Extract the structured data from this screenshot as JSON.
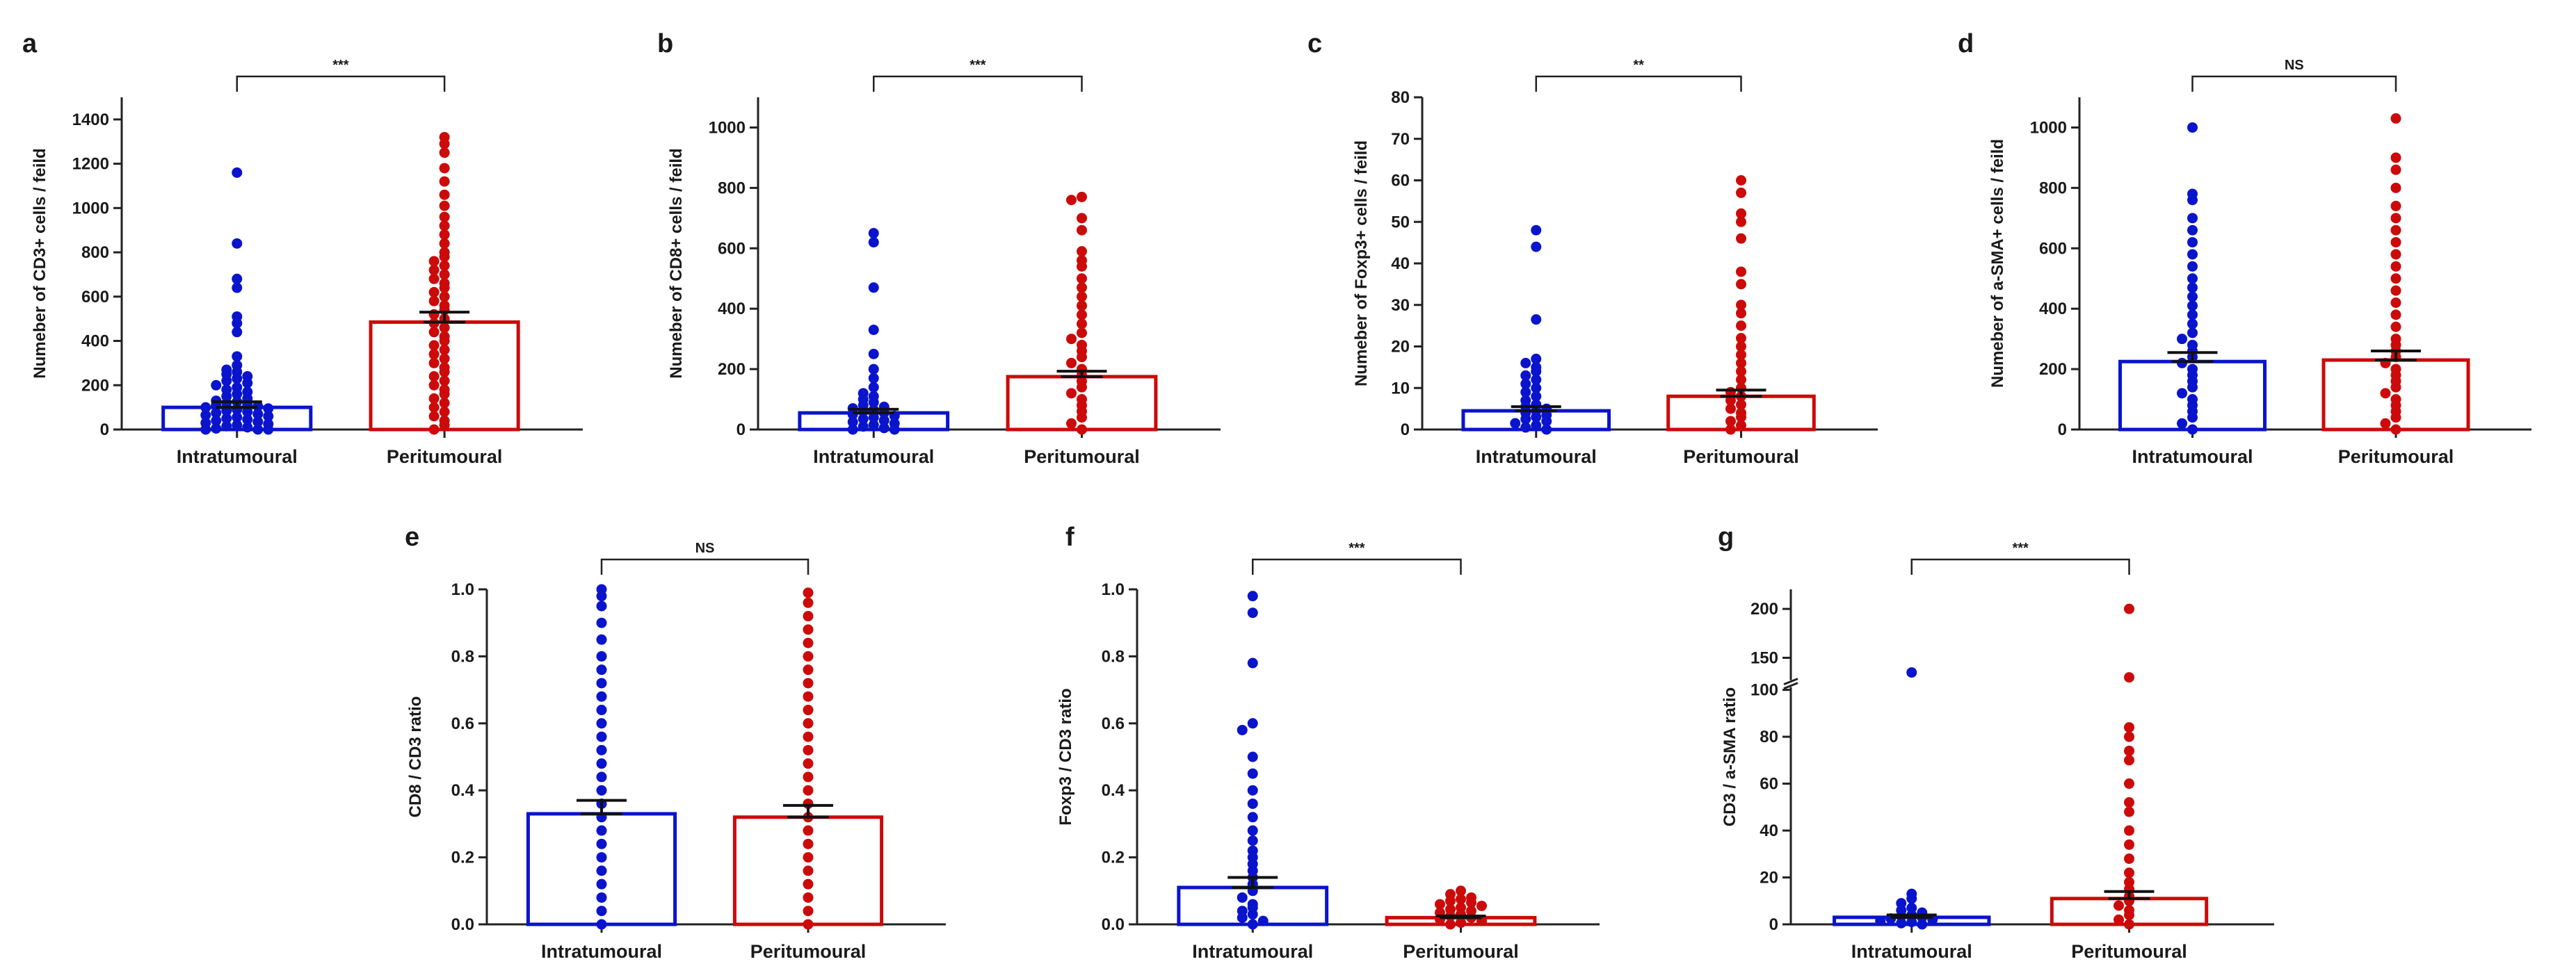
{
  "colors": {
    "intratumoural": "#0a14cc",
    "peritumoural": "#cc0a0a",
    "axis": "#222222"
  },
  "chart_data": [
    {
      "id": "a",
      "type": "bar",
      "panel_label": "a",
      "ylabel": "Numeber of CD3+ cells / feild",
      "categories": [
        "Intratumoural",
        "Peritumoural"
      ],
      "values": [
        100,
        485
      ],
      "errors": [
        25,
        45
      ],
      "ylim": [
        0,
        1500
      ],
      "yticks": [
        0,
        200,
        400,
        600,
        800,
        1000,
        1200,
        1400
      ],
      "significance": "***",
      "points": [
        [
          1160,
          840,
          680,
          640,
          510,
          480,
          440,
          330,
          290,
          270,
          260,
          250,
          240,
          230,
          220,
          210,
          200,
          190,
          180,
          170,
          160,
          150,
          140,
          130,
          125,
          120,
          115,
          110,
          105,
          100,
          95,
          90,
          85,
          80,
          75,
          70,
          65,
          60,
          55,
          50,
          45,
          40,
          35,
          30,
          25,
          20,
          15,
          10,
          5,
          0,
          0,
          0
        ],
        [
          1320,
          1290,
          1250,
          1180,
          1120,
          1060,
          1010,
          960,
          920,
          880,
          840,
          800,
          780,
          760,
          740,
          720,
          700,
          680,
          660,
          640,
          620,
          600,
          580,
          560,
          540,
          520,
          500,
          480,
          460,
          440,
          420,
          400,
          380,
          360,
          340,
          320,
          300,
          280,
          260,
          240,
          220,
          200,
          180,
          160,
          140,
          120,
          100,
          80,
          60,
          40,
          20,
          0
        ]
      ]
    },
    {
      "id": "b",
      "type": "bar",
      "panel_label": "b",
      "ylabel": "Numeber of CD8+ cells / feild",
      "categories": [
        "Intratumoural",
        "Peritumoural"
      ],
      "values": [
        55,
        175
      ],
      "errors": [
        12,
        18
      ],
      "ylim": [
        0,
        1100
      ],
      "yticks": [
        0,
        200,
        400,
        600,
        800,
        1000
      ],
      "significance": "***",
      "points": [
        [
          650,
          620,
          470,
          330,
          250,
          200,
          170,
          140,
          120,
          110,
          100,
          90,
          80,
          75,
          70,
          65,
          60,
          55,
          50,
          45,
          40,
          35,
          30,
          25,
          20,
          15,
          10,
          5,
          0,
          0
        ],
        [
          770,
          760,
          700,
          660,
          590,
          560,
          540,
          500,
          470,
          440,
          410,
          380,
          350,
          320,
          300,
          280,
          260,
          240,
          220,
          200,
          180,
          160,
          140,
          120,
          100,
          80,
          60,
          40,
          20,
          0
        ]
      ]
    },
    {
      "id": "c",
      "type": "bar",
      "panel_label": "c",
      "ylabel": "Numeber of Foxp3+ cells / feild",
      "categories": [
        "Intratumoural",
        "Peritumoural"
      ],
      "values": [
        4.5,
        8
      ],
      "errors": [
        1.0,
        1.5
      ],
      "ylim": [
        0,
        80
      ],
      "yticks": [
        0,
        10,
        20,
        30,
        40,
        50,
        60,
        70,
        80
      ],
      "significance": "**",
      "points": [
        [
          48,
          44,
          26.5,
          17,
          16,
          15,
          14,
          13,
          12,
          11,
          10,
          9,
          8,
          7,
          6,
          5.5,
          5,
          4.5,
          4,
          3.5,
          3,
          2.5,
          2,
          1.5,
          1,
          0.5,
          0
        ],
        [
          60,
          57,
          52,
          50,
          46,
          38,
          35,
          30,
          28,
          25,
          22,
          20,
          18,
          16,
          14,
          12,
          10,
          9,
          8,
          7,
          6,
          5,
          4,
          3,
          2,
          1,
          0
        ]
      ]
    },
    {
      "id": "d",
      "type": "bar",
      "panel_label": "d",
      "ylabel": "Numeber of a-SMA+ cells / feild",
      "categories": [
        "Intratumoural",
        "Peritumoural"
      ],
      "values": [
        225,
        230
      ],
      "errors": [
        30,
        30
      ],
      "ylim": [
        0,
        1100
      ],
      "yticks": [
        0,
        200,
        400,
        600,
        800,
        1000
      ],
      "significance": "NS",
      "points": [
        [
          1000,
          780,
          760,
          700,
          660,
          620,
          580,
          540,
          500,
          470,
          440,
          410,
          380,
          350,
          320,
          300,
          280,
          260,
          240,
          220,
          200,
          180,
          160,
          140,
          120,
          100,
          80,
          60,
          40,
          20,
          0
        ],
        [
          1030,
          900,
          860,
          800,
          740,
          700,
          660,
          620,
          580,
          540,
          500,
          460,
          420,
          380,
          340,
          300,
          280,
          260,
          240,
          220,
          200,
          180,
          160,
          140,
          120,
          100,
          80,
          60,
          40,
          20,
          0
        ]
      ]
    },
    {
      "id": "e",
      "type": "bar",
      "panel_label": "e",
      "ylabel": "CD8 / CD3 ratio",
      "categories": [
        "Intratumoural",
        "Peritumoural"
      ],
      "values": [
        0.33,
        0.32
      ],
      "errors": [
        0.04,
        0.035
      ],
      "ylim": [
        0,
        1.0
      ],
      "yticks": [
        0.0,
        0.2,
        0.4,
        0.6,
        0.8,
        1.0
      ],
      "significance": "NS",
      "points": [
        [
          1.0,
          0.98,
          0.95,
          0.9,
          0.85,
          0.8,
          0.76,
          0.72,
          0.68,
          0.64,
          0.6,
          0.56,
          0.52,
          0.48,
          0.44,
          0.4,
          0.36,
          0.32,
          0.28,
          0.24,
          0.2,
          0.16,
          0.12,
          0.08,
          0.04,
          0.0
        ],
        [
          0.99,
          0.96,
          0.92,
          0.88,
          0.84,
          0.8,
          0.76,
          0.72,
          0.68,
          0.64,
          0.6,
          0.56,
          0.52,
          0.48,
          0.44,
          0.4,
          0.36,
          0.32,
          0.28,
          0.24,
          0.2,
          0.16,
          0.12,
          0.08,
          0.04,
          0.0
        ]
      ]
    },
    {
      "id": "f",
      "type": "bar",
      "panel_label": "f",
      "ylabel": "Foxp3 / CD3 ratio",
      "categories": [
        "Intratumoural",
        "Peritumoural"
      ],
      "values": [
        0.11,
        0.02
      ],
      "errors": [
        0.03,
        0.005
      ],
      "ylim": [
        0,
        1.0
      ],
      "yticks": [
        0.0,
        0.2,
        0.4,
        0.6,
        0.8,
        1.0
      ],
      "significance": "***",
      "points": [
        [
          0.98,
          0.93,
          0.78,
          0.6,
          0.58,
          0.5,
          0.45,
          0.4,
          0.36,
          0.32,
          0.28,
          0.25,
          0.22,
          0.2,
          0.18,
          0.16,
          0.14,
          0.12,
          0.1,
          0.08,
          0.06,
          0.05,
          0.04,
          0.03,
          0.02,
          0.01,
          0.0
        ],
        [
          0.1,
          0.09,
          0.08,
          0.075,
          0.07,
          0.065,
          0.06,
          0.055,
          0.05,
          0.045,
          0.04,
          0.035,
          0.03,
          0.025,
          0.02,
          0.015,
          0.01,
          0.005,
          0.0
        ]
      ]
    },
    {
      "id": "g",
      "type": "bar",
      "panel_label": "g",
      "ylabel": "CD3 / a-SMA ratio",
      "categories": [
        "Intratumoural",
        "Peritumoural"
      ],
      "values": [
        3,
        11
      ],
      "errors": [
        1,
        3
      ],
      "ylim": [
        0,
        220
      ],
      "yticks": [
        0,
        20,
        40,
        60,
        80,
        100,
        150,
        200
      ],
      "axis_break": [
        100,
        130
      ],
      "significance": "***",
      "points": [
        [
          135,
          13,
          11,
          9,
          7,
          6,
          5,
          4,
          3.5,
          3,
          2.5,
          2,
          1.5,
          1,
          0.5,
          0
        ],
        [
          200,
          130,
          84,
          80,
          74,
          70,
          60,
          52,
          48,
          40,
          34,
          28,
          22,
          18,
          15,
          12,
          10,
          8,
          6,
          4,
          2,
          0
        ]
      ]
    }
  ]
}
